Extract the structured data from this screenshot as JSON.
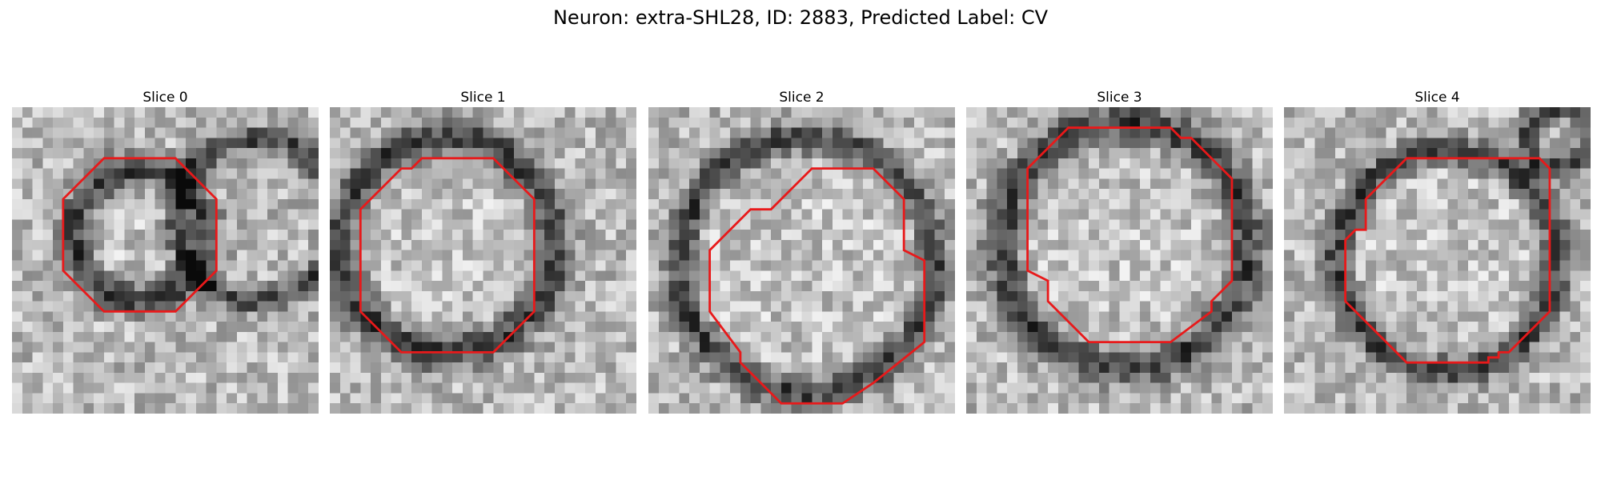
{
  "figure": {
    "title": "Neuron: extra-SHL28, ID: 2883, Predicted Label: CV"
  },
  "panels": [
    {
      "title": "Slice 0"
    },
    {
      "title": "Slice 1"
    },
    {
      "title": "Slice 2"
    },
    {
      "title": "Slice 3"
    },
    {
      "title": "Slice 4"
    }
  ],
  "colors": {
    "contour": "#e8191a",
    "image_dark": "#101010",
    "image_light": "#f2f2f2"
  }
}
